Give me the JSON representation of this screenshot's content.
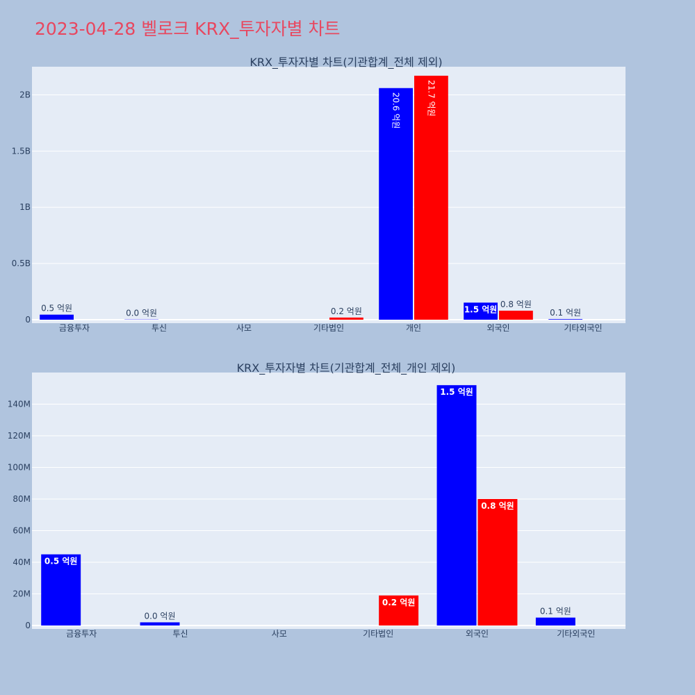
{
  "page": {
    "title": "2023-04-28 벨로크 KRX_투자자별 차트"
  },
  "colors": {
    "background": "#b0c4de",
    "plot_bg": "#e5ecf6",
    "title": "#e8475f",
    "series_blue": "#0000ff",
    "series_red": "#ff0000"
  },
  "chart_data": [
    {
      "type": "bar",
      "title": "KRX_투자자별 차트(기관합계_전체 제외)",
      "categories": [
        "금융투자",
        "투신",
        "사모",
        "기타법인",
        "개인",
        "외국인",
        "기타외국인"
      ],
      "ylim": [
        0,
        2250000000
      ],
      "yticks": [
        0,
        500000000,
        1000000000,
        1500000000,
        2000000000
      ],
      "ytick_labels": [
        "0",
        "0.5B",
        "1B",
        "1.5B",
        "2B"
      ],
      "series": [
        {
          "color": "#0000ff",
          "values": [
            45000000,
            2000000,
            0,
            0,
            2060000000,
            152000000,
            5000000
          ],
          "labels": [
            "0.5 억원",
            "0.0 억원",
            "",
            "",
            "20.6 억원",
            "1.5 억원",
            "0.1 억원"
          ]
        },
        {
          "color": "#ff0000",
          "values": [
            0,
            0,
            0,
            19000000,
            2170000000,
            80000000,
            0
          ],
          "labels": [
            "",
            "",
            "",
            "0.2 억원",
            "21.7 억원",
            "0.8 억원",
            ""
          ]
        }
      ],
      "grid": true
    },
    {
      "type": "bar",
      "title": "KRX_투자자별 차트(기관합계_전체_개인 제외)",
      "categories": [
        "금융투자",
        "투신",
        "사모",
        "기타법인",
        "외국인",
        "기타외국인"
      ],
      "ylim": [
        0,
        160000000
      ],
      "yticks": [
        0,
        20000000,
        40000000,
        60000000,
        80000000,
        100000000,
        120000000,
        140000000
      ],
      "ytick_labels": [
        "0",
        "20M",
        "40M",
        "60M",
        "80M",
        "100M",
        "120M",
        "140M"
      ],
      "series": [
        {
          "color": "#0000ff",
          "values": [
            45000000,
            2000000,
            0,
            0,
            152000000,
            5000000
          ],
          "labels": [
            "0.5 억원",
            "0.0 억원",
            "",
            "",
            "1.5 억원",
            "0.1 억원"
          ]
        },
        {
          "color": "#ff0000",
          "values": [
            0,
            0,
            0,
            19000000,
            80000000,
            0
          ],
          "labels": [
            "",
            "",
            "",
            "0.2 억원",
            "0.8 억원",
            ""
          ]
        }
      ],
      "grid": true
    }
  ]
}
